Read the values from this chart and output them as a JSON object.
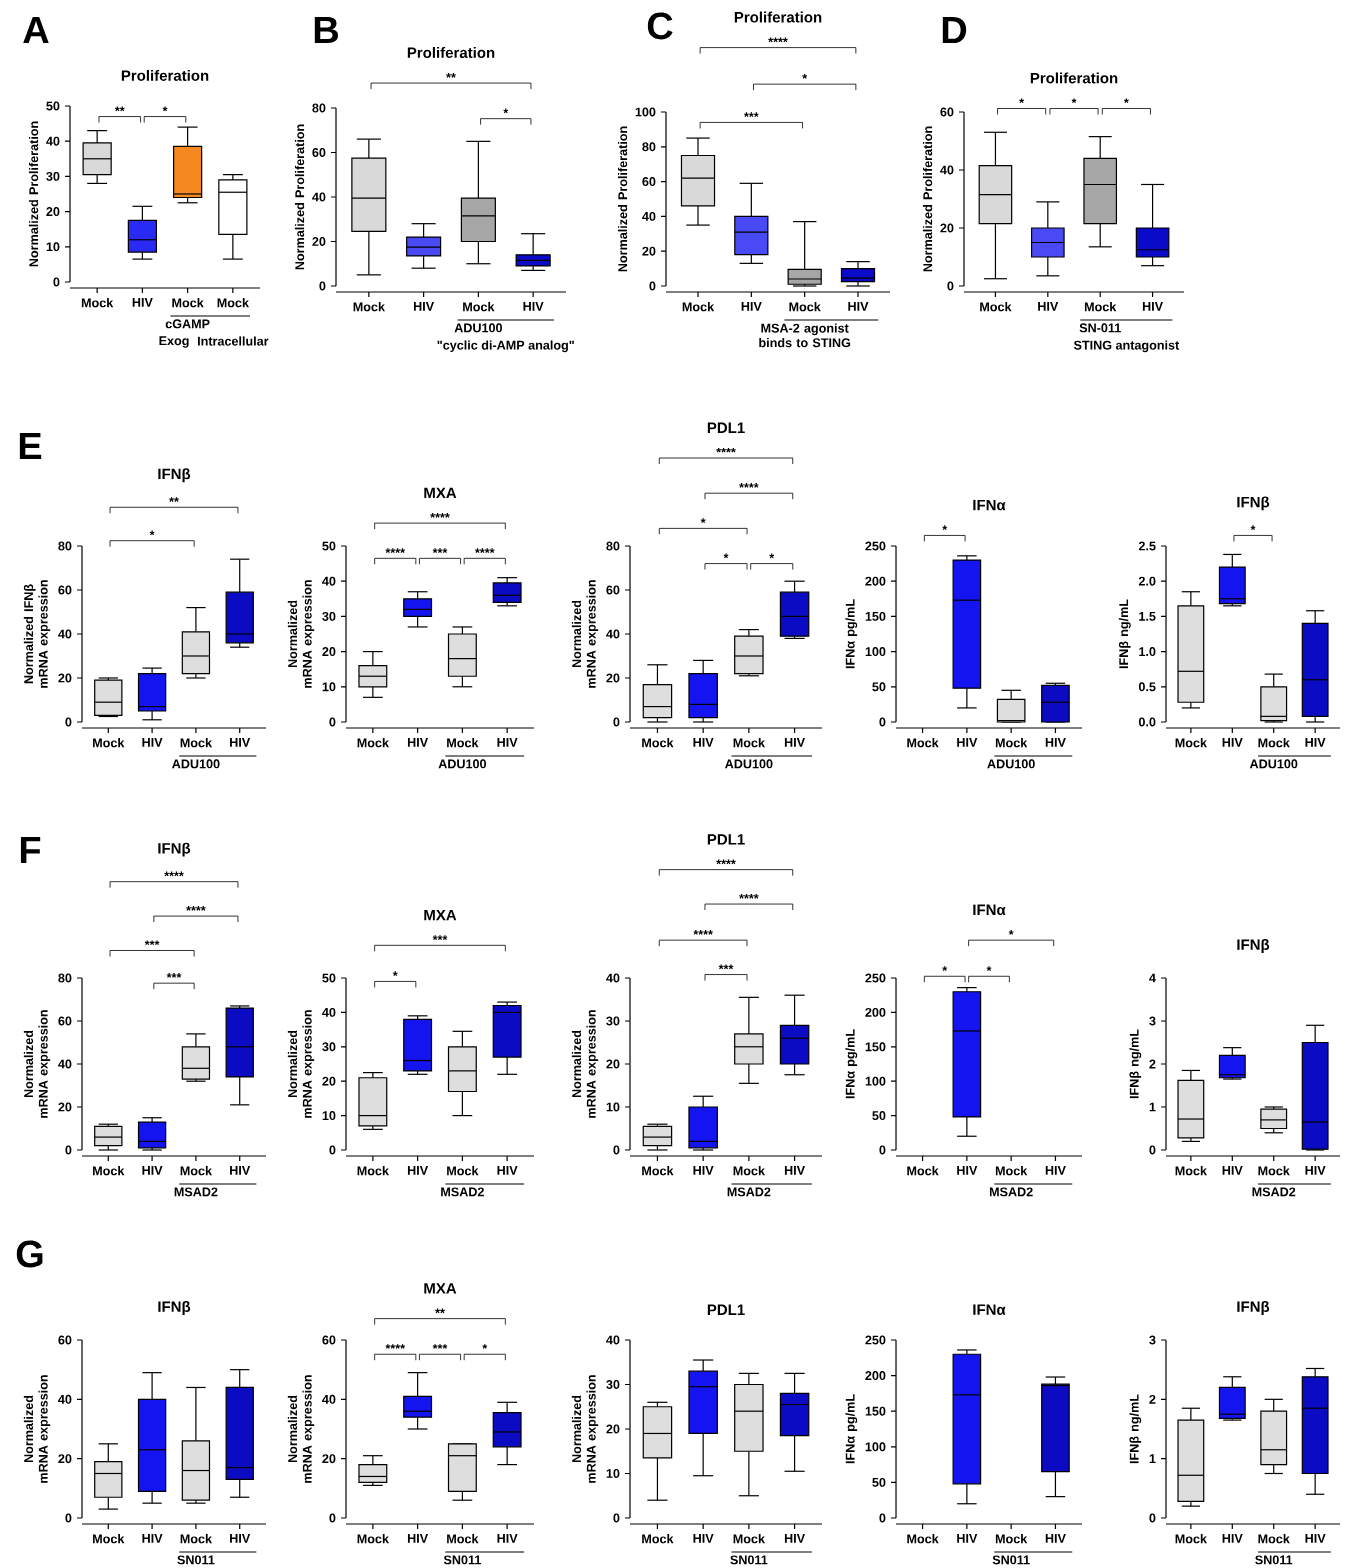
{
  "chart_data": [
    {
      "type": "box",
      "title": "Proliferation",
      "ylabel": "Normalized Proliferation",
      "xlabel": "cGAMP",
      "categories": [
        "Mock",
        "HIV",
        "Mock",
        "Mock"
      ],
      "colors": [
        "#d9d9d9",
        "#2a2af5",
        "#f5891f",
        "#ffffff"
      ],
      "ylim": [
        0,
        50
      ],
      "yticks": [
        0,
        10,
        20,
        30,
        40,
        50
      ],
      "boxes": [
        {
          "low": 28,
          "q1": 30.5,
          "median": 35,
          "q3": 39.5,
          "high": 43
        },
        {
          "low": 6.5,
          "q1": 8.5,
          "median": 12,
          "q3": 17.5,
          "high": 21.5
        },
        {
          "low": 22.5,
          "q1": 24,
          "median": 25,
          "q3": 38.5,
          "high": 44
        },
        {
          "low": 6.5,
          "q1": 13.5,
          "median": 25.5,
          "q3": 29,
          "high": 30.5
        }
      ],
      "annotations": [
        "A",
        "**",
        "*",
        "Exog",
        "Intracellular"
      ]
    },
    {
      "type": "box",
      "title": "Proliferation",
      "ylabel": "Normalized Proliferation",
      "xlabel": "ADU100",
      "categories": [
        "Mock",
        "HIV",
        "Mock",
        "HIV"
      ],
      "colors": [
        "#d9d9d9",
        "#4a4af5",
        "#a6a6a6",
        "#0a0ac8"
      ],
      "ylim": [
        0,
        80
      ],
      "yticks": [
        0,
        20,
        40,
        60,
        80
      ],
      "boxes": [
        {
          "low": 5,
          "q1": 24.5,
          "median": 39.5,
          "q3": 57.5,
          "high": 66
        },
        {
          "low": 8,
          "q1": 13.5,
          "median": 17.5,
          "q3": 22,
          "high": 28
        },
        {
          "low": 10,
          "q1": 20,
          "median": 31.5,
          "q3": 39.5,
          "high": 65
        },
        {
          "low": 7,
          "q1": 9,
          "median": 11.5,
          "q3": 14,
          "high": 23.5
        }
      ],
      "annotations": [
        "B",
        "**",
        "*",
        "\"cyclic di-AMP analog\""
      ]
    },
    {
      "type": "box",
      "title": "Proliferation",
      "ylabel": "Normalized Proliferation",
      "xlabel": "MSA-2 agonist binds to STING",
      "categories": [
        "Mock",
        "HIV",
        "Mock",
        "HIV"
      ],
      "colors": [
        "#d9d9d9",
        "#4a4af5",
        "#a6a6a6",
        "#0a0ac8"
      ],
      "ylim": [
        0,
        100
      ],
      "yticks": [
        0,
        20,
        40,
        60,
        80,
        100
      ],
      "boxes": [
        {
          "low": 35,
          "q1": 46,
          "median": 62,
          "q3": 75,
          "high": 85
        },
        {
          "low": 13,
          "q1": 18,
          "median": 31,
          "q3": 40,
          "high": 59
        },
        {
          "low": 0,
          "q1": 1,
          "median": 4,
          "q3": 9.5,
          "high": 37
        },
        {
          "low": 0,
          "q1": 2.5,
          "median": 4.5,
          "q3": 10,
          "high": 14
        }
      ],
      "annotations": [
        "C",
        "****",
        "*",
        "***"
      ]
    },
    {
      "type": "box",
      "title": "Proliferation",
      "ylabel": "Normalized Proliferation",
      "xlabel": "SN-011",
      "categories": [
        "Mock",
        "HIV",
        "Mock",
        "HIV"
      ],
      "colors": [
        "#d9d9d9",
        "#4a4af5",
        "#a6a6a6",
        "#0a0ac8"
      ],
      "ylim": [
        0,
        60
      ],
      "yticks": [
        0,
        20,
        40,
        60
      ],
      "boxes": [
        {
          "low": 2.5,
          "q1": 21.5,
          "median": 31.5,
          "q3": 41.5,
          "high": 53
        },
        {
          "low": 3.5,
          "q1": 10,
          "median": 15,
          "q3": 20,
          "high": 29
        },
        {
          "low": 13.5,
          "q1": 21.5,
          "median": 35,
          "q3": 44,
          "high": 51.5
        },
        {
          "low": 7,
          "q1": 10,
          "median": 12.5,
          "q3": 20,
          "high": 35
        }
      ],
      "annotations": [
        "D",
        "*",
        "*",
        "*",
        "STING antagonist"
      ]
    },
    {
      "type": "box",
      "title": "IFNβ",
      "ylabel": "Normalized IFNβ mRNA expression",
      "xlabel": "ADU100",
      "categories": [
        "Mock",
        "HIV",
        "Mock",
        "HIV"
      ],
      "colors": [
        "#dedede",
        "#1414f0",
        "#dedede",
        "#0b0bc4"
      ],
      "ylim": [
        0,
        80
      ],
      "yticks": [
        0,
        20,
        40,
        60,
        80
      ],
      "boxes": [
        {
          "low": 2.5,
          "q1": 3,
          "median": 9,
          "q3": 19,
          "high": 20
        },
        {
          "low": 1,
          "q1": 5,
          "median": 7,
          "q3": 22,
          "high": 24.5
        },
        {
          "low": 20,
          "q1": 22,
          "median": 30,
          "q3": 41,
          "high": 52
        },
        {
          "low": 34,
          "q1": 36,
          "median": 40,
          "q3": 59,
          "high": 74
        }
      ],
      "annotations": [
        "E",
        "**",
        "*"
      ]
    },
    {
      "type": "box",
      "title": "MXA",
      "ylabel": "Normalized mRNA expression",
      "xlabel": "ADU100",
      "categories": [
        "Mock",
        "HIV",
        "Mock",
        "HIV"
      ],
      "colors": [
        "#dedede",
        "#1414f0",
        "#dedede",
        "#0b0bc4"
      ],
      "ylim": [
        0,
        50
      ],
      "yticks": [
        0,
        10,
        20,
        30,
        40,
        50
      ],
      "boxes": [
        {
          "low": 7,
          "q1": 10,
          "median": 13,
          "q3": 16,
          "high": 20
        },
        {
          "low": 27,
          "q1": 30,
          "median": 32,
          "q3": 35,
          "high": 37
        },
        {
          "low": 10,
          "q1": 13,
          "median": 18,
          "q3": 25,
          "high": 27
        },
        {
          "low": 33,
          "q1": 34,
          "median": 36,
          "q3": 39.5,
          "high": 41
        }
      ],
      "annotations": [
        "****",
        "****",
        "***",
        "****"
      ]
    },
    {
      "type": "box",
      "title": "PDL1",
      "ylabel": "Normalized mRNA expression",
      "xlabel": "ADU100",
      "categories": [
        "Mock",
        "HIV",
        "Mock",
        "HIV"
      ],
      "colors": [
        "#dedede",
        "#1414f0",
        "#dedede",
        "#0b0bc4"
      ],
      "ylim": [
        0,
        80
      ],
      "yticks": [
        0,
        20,
        40,
        60,
        80
      ],
      "boxes": [
        {
          "low": 0,
          "q1": 2,
          "median": 7,
          "q3": 17,
          "high": 26
        },
        {
          "low": 0,
          "q1": 2,
          "median": 8,
          "q3": 22,
          "high": 28
        },
        {
          "low": 21,
          "q1": 22,
          "median": 30,
          "q3": 39,
          "high": 42
        },
        {
          "low": 38,
          "q1": 39,
          "median": 48,
          "q3": 59,
          "high": 64
        }
      ],
      "annotations": [
        "****",
        "****",
        "*",
        "*",
        "*"
      ]
    },
    {
      "type": "box",
      "title": "IFNα",
      "ylabel": "IFNα pg/mL",
      "xlabel": "ADU100",
      "categories": [
        "Mock",
        "HIV",
        "Mock",
        "HIV"
      ],
      "colors": [
        "#dedede",
        "#1414f0",
        "#dedede",
        "#0b0bc4"
      ],
      "ylim": [
        0,
        250
      ],
      "yticks": [
        0,
        50,
        100,
        150,
        200,
        250
      ],
      "boxes": [
        null,
        {
          "low": 20,
          "q1": 48,
          "median": 173,
          "q3": 230,
          "high": 236
        },
        {
          "low": 0,
          "q1": 0,
          "median": 2,
          "q3": 32,
          "high": 45
        },
        {
          "low": 0,
          "q1": 0,
          "median": 28,
          "q3": 52,
          "high": 55
        }
      ],
      "annotations": [
        "*"
      ]
    },
    {
      "type": "box",
      "title": "IFNβ",
      "ylabel": "IFNβ ng/mL",
      "xlabel": "ADU100",
      "categories": [
        "Mock",
        "HIV",
        "Mock",
        "HIV"
      ],
      "colors": [
        "#dedede",
        "#1414f0",
        "#dedede",
        "#0b0bc4"
      ],
      "ylim": [
        0,
        2.5
      ],
      "yticks": [
        {
          "value": 0,
          "label": "0.0"
        },
        0.5,
        {
          "value": 1,
          "label": "1.0"
        },
        1.5,
        {
          "value": 2,
          "label": "2.0"
        },
        2.5
      ],
      "boxes": [
        {
          "low": 0.2,
          "q1": 0.28,
          "median": 0.72,
          "q3": 1.65,
          "high": 1.85
        },
        {
          "low": 1.65,
          "q1": 1.68,
          "median": 1.75,
          "q3": 2.2,
          "high": 2.38
        },
        {
          "low": 0,
          "q1": 0.02,
          "median": 0.08,
          "q3": 0.5,
          "high": 0.68
        },
        {
          "low": 0,
          "q1": 0.08,
          "median": 0.6,
          "q3": 1.4,
          "high": 1.58
        }
      ],
      "annotations": [
        "*"
      ]
    },
    {
      "type": "box",
      "title": "IFNβ",
      "ylabel": "Normalized mRNA expression",
      "xlabel": "MSAD2",
      "categories": [
        "Mock",
        "HIV",
        "Mock",
        "HIV"
      ],
      "colors": [
        "#dedede",
        "#1414f0",
        "#dedede",
        "#0b0bc4"
      ],
      "ylim": [
        0,
        80
      ],
      "yticks": [
        0,
        20,
        40,
        60,
        80
      ],
      "boxes": [
        {
          "low": 0,
          "q1": 2,
          "median": 6,
          "q3": 11,
          "high": 12
        },
        {
          "low": 0,
          "q1": 1,
          "median": 4,
          "q3": 13,
          "high": 15
        },
        {
          "low": 32,
          "q1": 33,
          "median": 38,
          "q3": 48,
          "high": 54
        },
        {
          "low": 21,
          "q1": 34,
          "median": 48,
          "q3": 66,
          "high": 67
        }
      ],
      "annotations": [
        "F",
        "****",
        "****",
        "***",
        "***"
      ]
    },
    {
      "type": "box",
      "title": "MXA",
      "ylabel": "Normalized mRNA expression",
      "xlabel": "MSAD2",
      "categories": [
        "Mock",
        "HIV",
        "Mock",
        "HIV"
      ],
      "colors": [
        "#dedede",
        "#1414f0",
        "#dedede",
        "#0b0bc4"
      ],
      "ylim": [
        0,
        50
      ],
      "yticks": [
        0,
        10,
        20,
        30,
        40,
        50
      ],
      "boxes": [
        {
          "low": 6,
          "q1": 7,
          "median": 10,
          "q3": 21,
          "high": 22.5
        },
        {
          "low": 22,
          "q1": 23,
          "median": 26,
          "q3": 38,
          "high": 39
        },
        {
          "low": 10,
          "q1": 17,
          "median": 23,
          "q3": 30,
          "high": 34.5
        },
        {
          "low": 22,
          "q1": 27,
          "median": 40,
          "q3": 42,
          "high": 43
        }
      ],
      "annotations": [
        "*",
        "***"
      ]
    },
    {
      "type": "box",
      "title": "PDL1",
      "ylabel": "Normalized mRNA expression",
      "xlabel": "MSAD2",
      "categories": [
        "Mock",
        "HIV",
        "Mock",
        "HIV"
      ],
      "colors": [
        "#dedede",
        "#1414f0",
        "#dedede",
        "#0b0bc4"
      ],
      "ylim": [
        0,
        40
      ],
      "yticks": [
        0,
        10,
        20,
        30,
        40
      ],
      "boxes": [
        {
          "low": 0,
          "q1": 1,
          "median": 3,
          "q3": 5.5,
          "high": 6
        },
        {
          "low": 0,
          "q1": 0.5,
          "median": 2,
          "q3": 10,
          "high": 12.5
        },
        {
          "low": 15.5,
          "q1": 20,
          "median": 24,
          "q3": 27,
          "high": 35.5
        },
        {
          "low": 17.5,
          "q1": 20,
          "median": 26,
          "q3": 29,
          "high": 36
        }
      ],
      "annotations": [
        "****",
        "****",
        "****",
        "***"
      ]
    },
    {
      "type": "box",
      "title": "IFNα",
      "ylabel": "IFNα pg/mL",
      "xlabel": "MSAD2",
      "categories": [
        "Mock",
        "HIV",
        "Mock",
        "HIV"
      ],
      "colors": [
        "#dedede",
        "#1414f0",
        "#dedede",
        "#0b0bc4"
      ],
      "ylim": [
        0,
        250
      ],
      "yticks": [
        0,
        50,
        100,
        150,
        200,
        250
      ],
      "boxes": [
        null,
        {
          "low": 20,
          "q1": 48,
          "median": 173,
          "q3": 230,
          "high": 236
        },
        null,
        null
      ],
      "annotations": [
        "*",
        "*",
        "*"
      ]
    },
    {
      "type": "box",
      "title": "IFNβ",
      "ylabel": "IFNβ ng/mL",
      "xlabel": "MSAD2",
      "categories": [
        "Mock",
        "HIV",
        "Mock",
        "HIV"
      ],
      "colors": [
        "#dedede",
        "#1414f0",
        "#dedede",
        "#0b0bc4"
      ],
      "ylim": [
        0,
        4
      ],
      "yticks": [
        0,
        1,
        2,
        3,
        4
      ],
      "boxes": [
        {
          "low": 0.2,
          "q1": 0.28,
          "median": 0.72,
          "q3": 1.62,
          "high": 1.85
        },
        {
          "low": 1.65,
          "q1": 1.68,
          "median": 1.75,
          "q3": 2.2,
          "high": 2.38
        },
        {
          "low": 0.4,
          "q1": 0.5,
          "median": 0.7,
          "q3": 0.95,
          "high": 1
        },
        {
          "low": 0,
          "q1": 0.02,
          "median": 0.65,
          "q3": 2.5,
          "high": 2.9
        }
      ]
    },
    {
      "type": "box",
      "title": "IFNβ",
      "ylabel": "Normalized mRNA expression",
      "xlabel": "SN011",
      "categories": [
        "Mock",
        "HIV",
        "Mock",
        "HIV"
      ],
      "colors": [
        "#dedede",
        "#1414f0",
        "#dedede",
        "#0b0bc4"
      ],
      "ylim": [
        0,
        60
      ],
      "yticks": [
        0,
        20,
        40,
        60
      ],
      "boxes": [
        {
          "low": 3,
          "q1": 7,
          "median": 15,
          "q3": 19,
          "high": 25
        },
        {
          "low": 5,
          "q1": 9,
          "median": 23,
          "q3": 40,
          "high": 49
        },
        {
          "low": 5,
          "q1": 6,
          "median": 16,
          "q3": 26,
          "high": 44
        },
        {
          "low": 7,
          "q1": 13,
          "median": 17,
          "q3": 44,
          "high": 50
        }
      ],
      "annotations": [
        "G"
      ]
    },
    {
      "type": "box",
      "title": "MXA",
      "ylabel": "Normalized mRNA expression",
      "xlabel": "SN011",
      "categories": [
        "Mock",
        "HIV",
        "Mock",
        "HIV"
      ],
      "colors": [
        "#dedede",
        "#1414f0",
        "#dedede",
        "#0b0bc4"
      ],
      "ylim": [
        0,
        60
      ],
      "yticks": [
        0,
        20,
        40,
        60
      ],
      "boxes": [
        {
          "low": 11,
          "q1": 12,
          "median": 14,
          "q3": 18,
          "high": 21
        },
        {
          "low": 30,
          "q1": 34,
          "median": 36,
          "q3": 41,
          "high": 49
        },
        {
          "low": 6,
          "q1": 9,
          "median": 21,
          "q3": 25,
          "high": 25
        },
        {
          "low": 18,
          "q1": 24,
          "median": 29,
          "q3": 35.5,
          "high": 39
        }
      ],
      "annotations": [
        "**",
        "****",
        "***",
        "*"
      ]
    },
    {
      "type": "box",
      "title": "PDL1",
      "ylabel": "Normalized mRNA expression",
      "xlabel": "SN011",
      "categories": [
        "Mock",
        "HIV",
        "Mock",
        "HIV"
      ],
      "colors": [
        "#dedede",
        "#1414f0",
        "#dedede",
        "#0b0bc4"
      ],
      "ylim": [
        0,
        40
      ],
      "yticks": [
        0,
        10,
        20,
        30,
        40
      ],
      "boxes": [
        {
          "low": 4,
          "q1": 13.5,
          "median": 19,
          "q3": 25,
          "high": 26
        },
        {
          "low": 9.5,
          "q1": 19,
          "median": 29.5,
          "q3": 33,
          "high": 35.5
        },
        {
          "low": 5,
          "q1": 15,
          "median": 24,
          "q3": 30,
          "high": 32.5
        },
        {
          "low": 10.5,
          "q1": 18.5,
          "median": 25.5,
          "q3": 28,
          "high": 32.5
        }
      ]
    },
    {
      "type": "box",
      "title": "IFNα",
      "ylabel": "IFNα pg/mL",
      "xlabel": "SN011",
      "categories": [
        "Mock",
        "HIV",
        "Mock",
        "HIV"
      ],
      "colors": [
        "#dedede",
        "#1414f0",
        "#dedede",
        "#0b0bc4"
      ],
      "ylim": [
        0,
        250
      ],
      "yticks": [
        0,
        50,
        100,
        150,
        200,
        250
      ],
      "boxes": [
        null,
        {
          "low": 20,
          "q1": 48,
          "median": 173,
          "q3": 230,
          "high": 236
        },
        null,
        {
          "low": 30,
          "q1": 65,
          "median": 186,
          "q3": 188,
          "high": 198
        }
      ]
    },
    {
      "type": "box",
      "title": "IFNβ",
      "ylabel": "IFNβ ng/mL",
      "xlabel": "SN011",
      "categories": [
        "Mock",
        "HIV",
        "Mock",
        "HIV"
      ],
      "colors": [
        "#dedede",
        "#1414f0",
        "#dedede",
        "#0b0bc4"
      ],
      "ylim": [
        0,
        3
      ],
      "yticks": [
        0,
        1,
        2,
        3
      ],
      "boxes": [
        {
          "low": 0.2,
          "q1": 0.28,
          "median": 0.72,
          "q3": 1.65,
          "high": 1.85
        },
        {
          "low": 1.65,
          "q1": 1.68,
          "median": 1.75,
          "q3": 2.2,
          "high": 2.38
        },
        {
          "low": 0.75,
          "q1": 0.9,
          "median": 1.15,
          "q3": 1.8,
          "high": 2
        },
        {
          "low": 0.4,
          "q1": 0.75,
          "median": 1.85,
          "q3": 2.38,
          "high": 2.52
        }
      ]
    }
  ]
}
